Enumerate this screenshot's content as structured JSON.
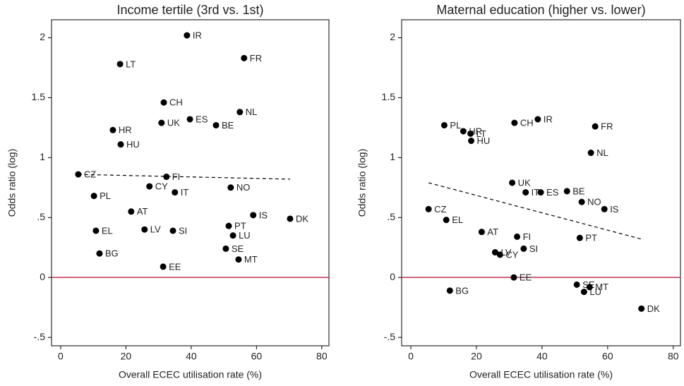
{
  "chart_data": [
    {
      "type": "scatter",
      "title": "Income tertile (3rd vs. 1st)",
      "x_label": "Overall ECEC utilisation rate (%)",
      "y_label": "Odds ratio (log)",
      "labels": [
        "IR",
        "FR",
        "LT",
        "CH",
        "NL",
        "ES",
        "UK",
        "BE",
        "HR",
        "HU",
        "CZ",
        "FI",
        "CY",
        "NO",
        "IT",
        "PL",
        "AT",
        "IS",
        "DK",
        "PT",
        "EL",
        "LV",
        "SI",
        "LU",
        "SE",
        "BG",
        "MT",
        "EE"
      ],
      "x": [
        38.7,
        56.2,
        18.2,
        31.6,
        54.9,
        39.6,
        30.9,
        47.6,
        16.0,
        18.4,
        5.4,
        32.4,
        27.2,
        52.1,
        35.0,
        10.2,
        21.6,
        59.0,
        70.3,
        51.5,
        10.8,
        25.7,
        34.4,
        52.8,
        50.6,
        11.9,
        54.5,
        31.4
      ],
      "y": [
        2.02,
        1.83,
        1.78,
        1.46,
        1.38,
        1.32,
        1.29,
        1.27,
        1.23,
        1.11,
        0.86,
        0.84,
        0.76,
        0.75,
        0.71,
        0.68,
        0.55,
        0.52,
        0.49,
        0.43,
        0.39,
        0.4,
        0.39,
        0.35,
        0.24,
        0.2,
        0.15,
        0.09
      ],
      "color": "#000000",
      "trend": {
        "x": [
          5.4,
          70.3
        ],
        "y": [
          0.86,
          0.82
        ]
      },
      "hline": 0,
      "hline_color": "#c0304f",
      "xlim": [
        -2.8,
        82.2
      ],
      "ylim": [
        -0.57,
        2.15
      ],
      "xticks": [
        0,
        20,
        40,
        60,
        80
      ],
      "yticks": [
        {
          "value": -0.5,
          "label": "-.5"
        },
        0,
        {
          "value": 0.5,
          "label": ".5"
        },
        1,
        1.5,
        2
      ]
    },
    {
      "type": "scatter",
      "title": "Maternal education (higher vs. lower)",
      "x_label": "Overall ECEC utilisation rate (%)",
      "y_label": "Odds ratio (log)",
      "labels": [
        "IR",
        "FR",
        "LT",
        "CH",
        "NL",
        "ES",
        "UK",
        "BE",
        "HR",
        "HU",
        "CZ",
        "FI",
        "CY",
        "NO",
        "IT",
        "PL",
        "AT",
        "IS",
        "DK",
        "PT",
        "EL",
        "LV",
        "SI",
        "LU",
        "SE",
        "BG",
        "MT",
        "EE"
      ],
      "x": [
        38.7,
        56.2,
        18.2,
        31.6,
        54.9,
        39.6,
        30.9,
        47.6,
        16.0,
        18.4,
        5.4,
        32.4,
        27.2,
        52.1,
        35.0,
        10.2,
        21.6,
        59.0,
        70.3,
        51.5,
        10.8,
        25.7,
        34.4,
        52.8,
        50.6,
        11.9,
        54.5,
        31.4
      ],
      "y": [
        1.32,
        1.26,
        1.2,
        1.29,
        1.04,
        0.71,
        0.79,
        0.72,
        1.22,
        1.14,
        0.57,
        0.34,
        0.19,
        0.63,
        0.71,
        1.27,
        0.38,
        0.57,
        -0.26,
        0.33,
        0.48,
        0.21,
        0.24,
        -0.12,
        -0.06,
        -0.11,
        -0.08,
        0.0
      ],
      "color": "#000000",
      "trend": {
        "x": [
          5.4,
          70.3
        ],
        "y": [
          0.79,
          0.32
        ]
      },
      "hline": 0,
      "hline_color": "#c0304f",
      "xlim": [
        -2.8,
        82.2
      ],
      "ylim": [
        -0.57,
        2.15
      ],
      "xticks": [
        0,
        20,
        40,
        60,
        80
      ],
      "yticks": [
        {
          "value": -0.5,
          "label": "-.5"
        },
        0,
        {
          "value": 0.5,
          "label": ".5"
        },
        1,
        1.5,
        2
      ]
    }
  ]
}
